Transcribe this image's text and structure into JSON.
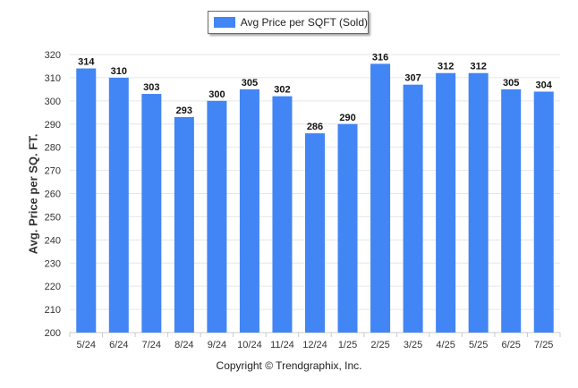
{
  "chart_data": {
    "type": "bar",
    "categories": [
      "5/24",
      "6/24",
      "7/24",
      "8/24",
      "9/24",
      "10/24",
      "11/24",
      "12/24",
      "1/25",
      "2/25",
      "3/25",
      "4/25",
      "5/25",
      "6/25",
      "7/25"
    ],
    "series": [
      {
        "name": "Avg Price per SQFT (Sold)",
        "values": [
          314,
          310,
          303,
          293,
          300,
          305,
          302,
          286,
          290,
          316,
          307,
          312,
          312,
          305,
          304
        ]
      }
    ],
    "ylabel": "Avg. Price per SQ. FT.",
    "xlabel": "",
    "ylim": [
      200,
      320
    ],
    "yticks": [
      200,
      210,
      220,
      230,
      240,
      250,
      260,
      270,
      280,
      290,
      300,
      310,
      320
    ],
    "grid": true,
    "legend_position": "top-center",
    "bar_color": "#4285f4",
    "data_labels": true
  },
  "footer": {
    "copyright": "Copyright © Trendgraphix, Inc."
  }
}
